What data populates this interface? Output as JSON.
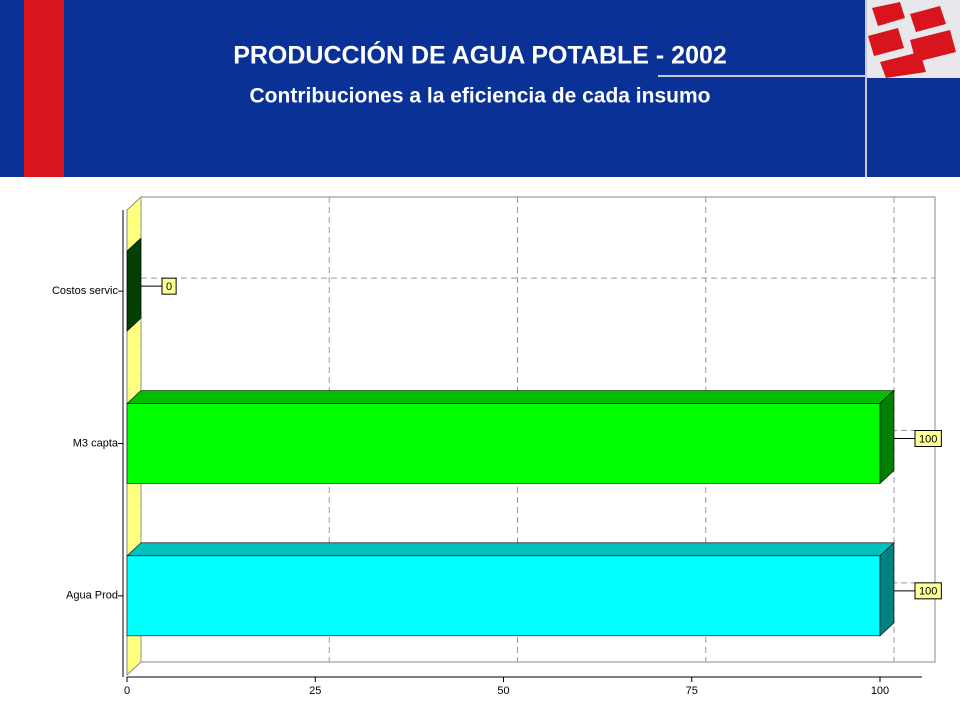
{
  "chart_data": {
    "type": "bar",
    "orientation": "horizontal",
    "title": "PRODUCCIÓN DE AGUA POTABLE - 2002",
    "subtitle": "Contribuciones a la eficiencia de cada insumo",
    "categories": [
      "Costos servic",
      "M3 capta",
      "Agua Prod"
    ],
    "values": [
      0,
      100,
      100
    ],
    "colors": [
      "#008000",
      "#00ff00",
      "#00ffff"
    ],
    "xlim": [
      0,
      100
    ],
    "xticks": [
      0,
      25,
      50,
      75,
      100
    ],
    "grid": true
  }
}
